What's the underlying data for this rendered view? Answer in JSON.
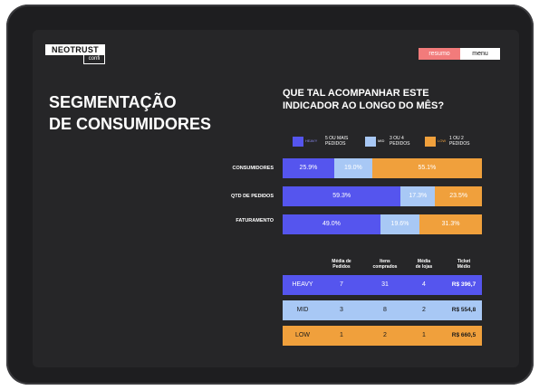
{
  "header": {
    "logo_main": "NEOTRUST",
    "logo_sub": "confi",
    "resumo_label": "resumo",
    "menu_label": "menu"
  },
  "page": {
    "title_line1": "SEGMENTAÇÃO",
    "title_line2": "DE CONSUMIDORES",
    "question_line1": "QUE TAL ACOMPANHAR ESTE",
    "question_line2": "INDICADOR AO LONGO DO MÊS?"
  },
  "colors": {
    "heavy": "#5555ee",
    "mid": "#a8c8f5",
    "low": "#f0a03c"
  },
  "chart_data": {
    "type": "bar",
    "stacked": true,
    "orientation": "horizontal",
    "legend": [
      {
        "name": "HEAVY",
        "desc_line1": "5 OU MAIS",
        "desc_line2": "PEDIDOS"
      },
      {
        "name": "MID",
        "desc_line1": "3 OU 4",
        "desc_line2": "PEDIDOS"
      },
      {
        "name": "LOW",
        "desc_line1": "1 OU 2",
        "desc_line2": "PEDIDOS"
      }
    ],
    "categories": [
      "CONSUMIDORES",
      "QTD DE PEDIDOS",
      "FATURAMENTO"
    ],
    "series": [
      {
        "name": "HEAVY",
        "values": [
          25.9,
          59.3,
          49.0
        ],
        "labels": [
          "25.9%",
          "59.3%",
          "49.0%"
        ]
      },
      {
        "name": "MID",
        "values": [
          19.0,
          17.3,
          19.6
        ],
        "labels": [
          "19.0%",
          "17.3%",
          "19.6%"
        ]
      },
      {
        "name": "LOW",
        "values": [
          55.1,
          23.5,
          31.3
        ],
        "labels": [
          "55.1%",
          "23.5%",
          "31.3%"
        ]
      }
    ]
  },
  "table": {
    "headers": [
      {
        "line1": "Média de",
        "line2": "Pedidos"
      },
      {
        "line1": "Itens",
        "line2": "comprados"
      },
      {
        "line1": "Média",
        "line2": "de lojas"
      },
      {
        "line1": "Ticket",
        "line2": "Médio"
      }
    ],
    "rows": [
      {
        "segment": "HEAVY",
        "pedidos": "7",
        "itens": "31",
        "lojas": "4",
        "ticket": "R$ 396,7"
      },
      {
        "segment": "MID",
        "pedidos": "3",
        "itens": "8",
        "lojas": "2",
        "ticket": "R$ 554,8"
      },
      {
        "segment": "LOW",
        "pedidos": "1",
        "itens": "2",
        "lojas": "1",
        "ticket": "R$ 660,5"
      }
    ]
  }
}
